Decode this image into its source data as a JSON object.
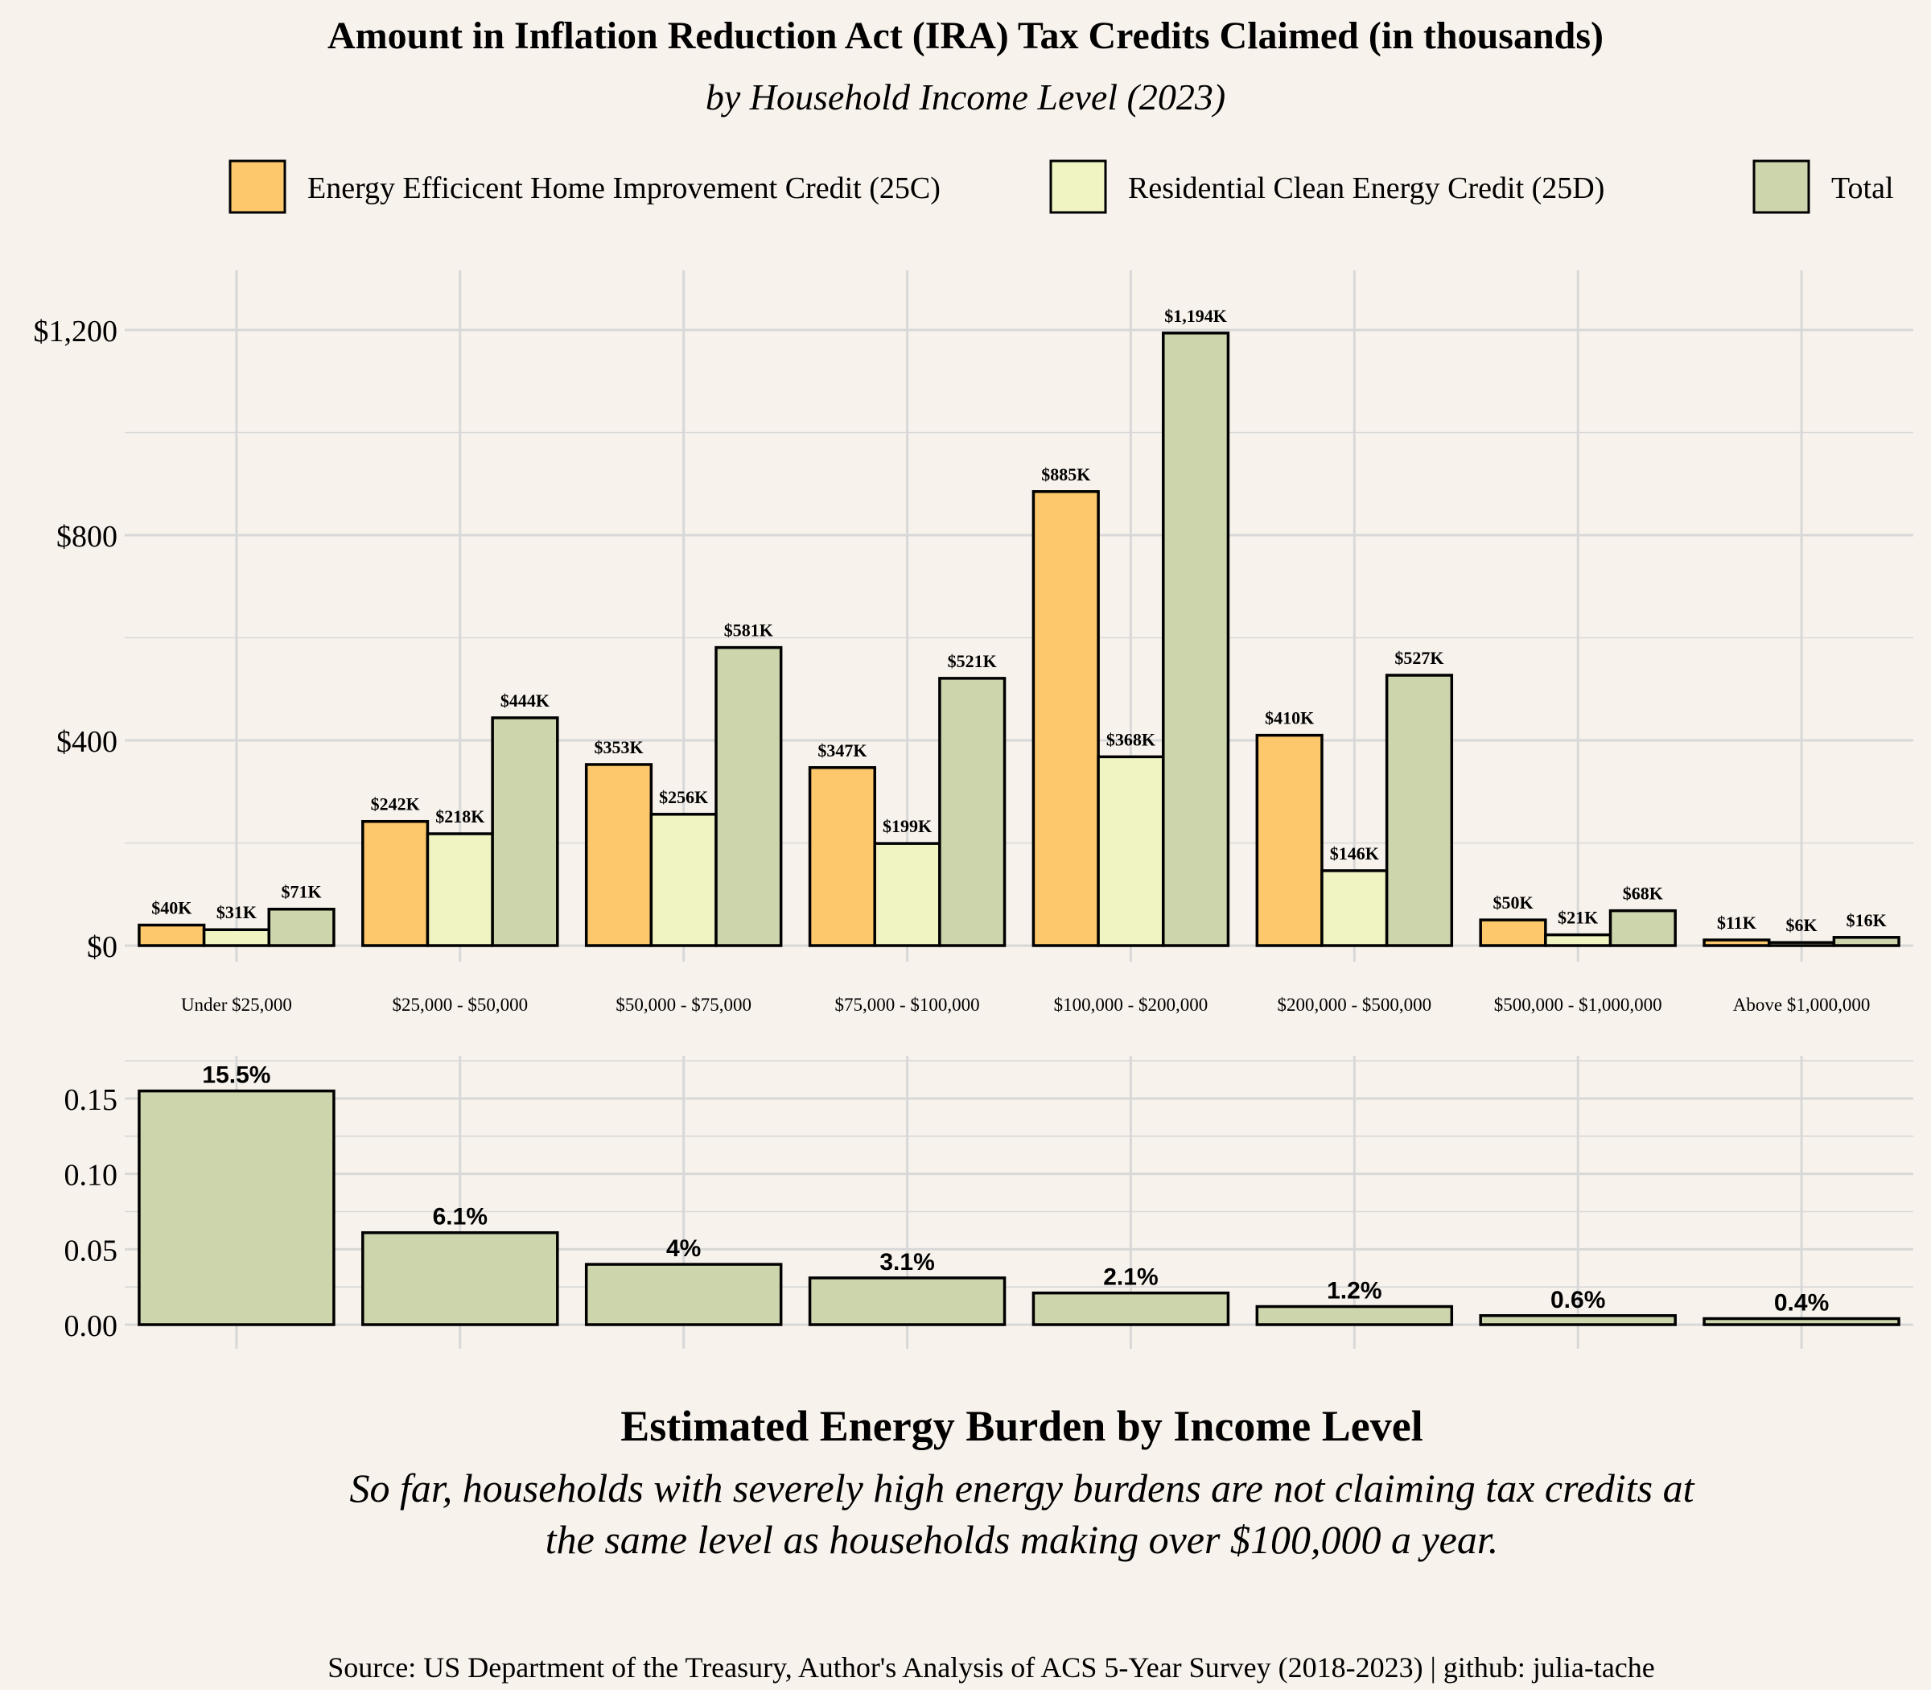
{
  "header": {
    "title": "Amount in Inflation Reduction Act (IRA) Tax Credits Claimed (in thousands)",
    "subtitle": "by Household Income Level (2023)"
  },
  "footer": {
    "section_title": "Estimated Energy Burden by Income Level",
    "caption_line1": "So far, households with severely high energy burdens are not claiming tax credits at",
    "caption_line2": "the same level as households making over $100,000 a year.",
    "source": "Source: US Department of the Treasury, Author's Analysis of ACS 5-Year Survey (2018-2023) | github: julia-tache"
  },
  "colors": {
    "background": "#f8f2ec",
    "grid": "#d8d8d8",
    "c25": "#fdc76b",
    "d25": "#eff4c2",
    "total": "#cdd5ad",
    "stroke": "#000000"
  },
  "chart_data": [
    {
      "type": "bar",
      "title": "Amount in Inflation Reduction Act (IRA) Tax Credits Claimed (in thousands)",
      "subtitle": "by Household Income Level (2023)",
      "categories": [
        "Under $25,000",
        "$25,000 - $50,000",
        "$50,000 - $75,000",
        "$75,000 - $100,000",
        "$100,000 - $200,000",
        "$200,000 - $500,000",
        "$500,000 - $1,000,000",
        "Above $1,000,000"
      ],
      "series": [
        {
          "name": "Energy Efficicent Home Improvement Credit (25C)",
          "color": "#fdc76b",
          "values": [
            40,
            242,
            353,
            347,
            885,
            410,
            50,
            11
          ],
          "labels": [
            "$40K",
            "$242K",
            "$353K",
            "$347K",
            "$885K",
            "$410K",
            "$50K",
            "$11K"
          ]
        },
        {
          "name": "Residential Clean Energy Credit (25D)",
          "color": "#eff4c2",
          "values": [
            31,
            218,
            256,
            199,
            368,
            146,
            21,
            6
          ],
          "labels": [
            "$31K",
            "$218K",
            "$256K",
            "$199K",
            "$368K",
            "$146K",
            "$21K",
            "$6K"
          ]
        },
        {
          "name": "Total",
          "color": "#cdd5ad",
          "values": [
            71,
            444,
            581,
            521,
            1194,
            527,
            68,
            16
          ],
          "labels": [
            "$71K",
            "$444K",
            "$581K",
            "$521K",
            "$1,194K",
            "$527K",
            "$68K",
            "$16K"
          ]
        }
      ],
      "yticks": [
        0,
        400,
        800,
        1200
      ],
      "ytick_labels": [
        "$0",
        "$400",
        "$800",
        "$1,200"
      ],
      "ylim": [
        0,
        1300
      ],
      "legend_position": "top",
      "grid": true
    },
    {
      "type": "bar",
      "title": "Estimated Energy Burden by Income Level",
      "categories": [
        "Under $25,000",
        "$25,000 - $50,000",
        "$50,000 - $75,000",
        "$75,000 - $100,000",
        "$100,000 - $200,000",
        "$200,000 - $500,000",
        "$500,000 - $1,000,000",
        "Above $1,000,000"
      ],
      "values": [
        0.155,
        0.061,
        0.04,
        0.031,
        0.021,
        0.012,
        0.006,
        0.004
      ],
      "labels": [
        "15.5%",
        "6.1%",
        "4%",
        "3.1%",
        "2.1%",
        "1.2%",
        "0.6%",
        "0.4%"
      ],
      "yticks": [
        0,
        0.05,
        0.1,
        0.15
      ],
      "ytick_labels": [
        "0.00",
        "0.05",
        "0.10",
        "0.15"
      ],
      "ylim": [
        -0.016,
        0.177
      ],
      "grid": true
    }
  ]
}
